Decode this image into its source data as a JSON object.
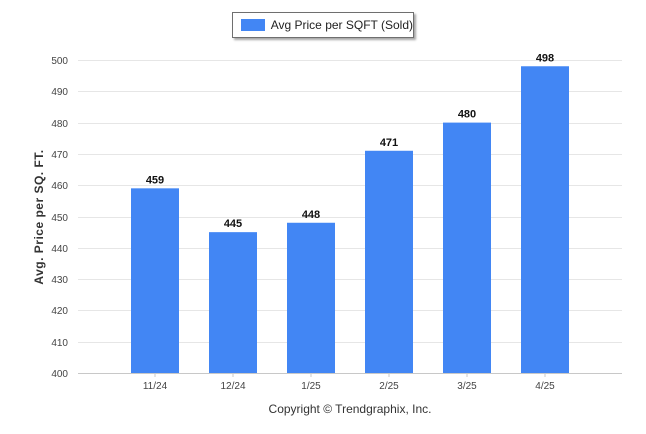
{
  "legend": {
    "label": "Avg Price per SQFT (Sold)",
    "color": "#4286f4"
  },
  "footer": "Copyright © Trendgraphix, Inc.",
  "chart_data": {
    "type": "bar",
    "title": "",
    "xlabel": "",
    "ylabel": "Avg. Price per SQ. FT.",
    "categories": [
      "11/24",
      "12/24",
      "1/25",
      "2/25",
      "3/25",
      "4/25"
    ],
    "series": [
      {
        "name": "Avg Price per SQFT (Sold)",
        "values": [
          459,
          445,
          448,
          471,
          480,
          498
        ]
      }
    ],
    "ylim": [
      400,
      500
    ],
    "yticks": [
      400,
      410,
      420,
      430,
      440,
      450,
      460,
      470,
      480,
      490,
      500
    ],
    "grid": true,
    "legend_position": "top-center",
    "bar_color": "#4286f4",
    "data_labels": true
  }
}
